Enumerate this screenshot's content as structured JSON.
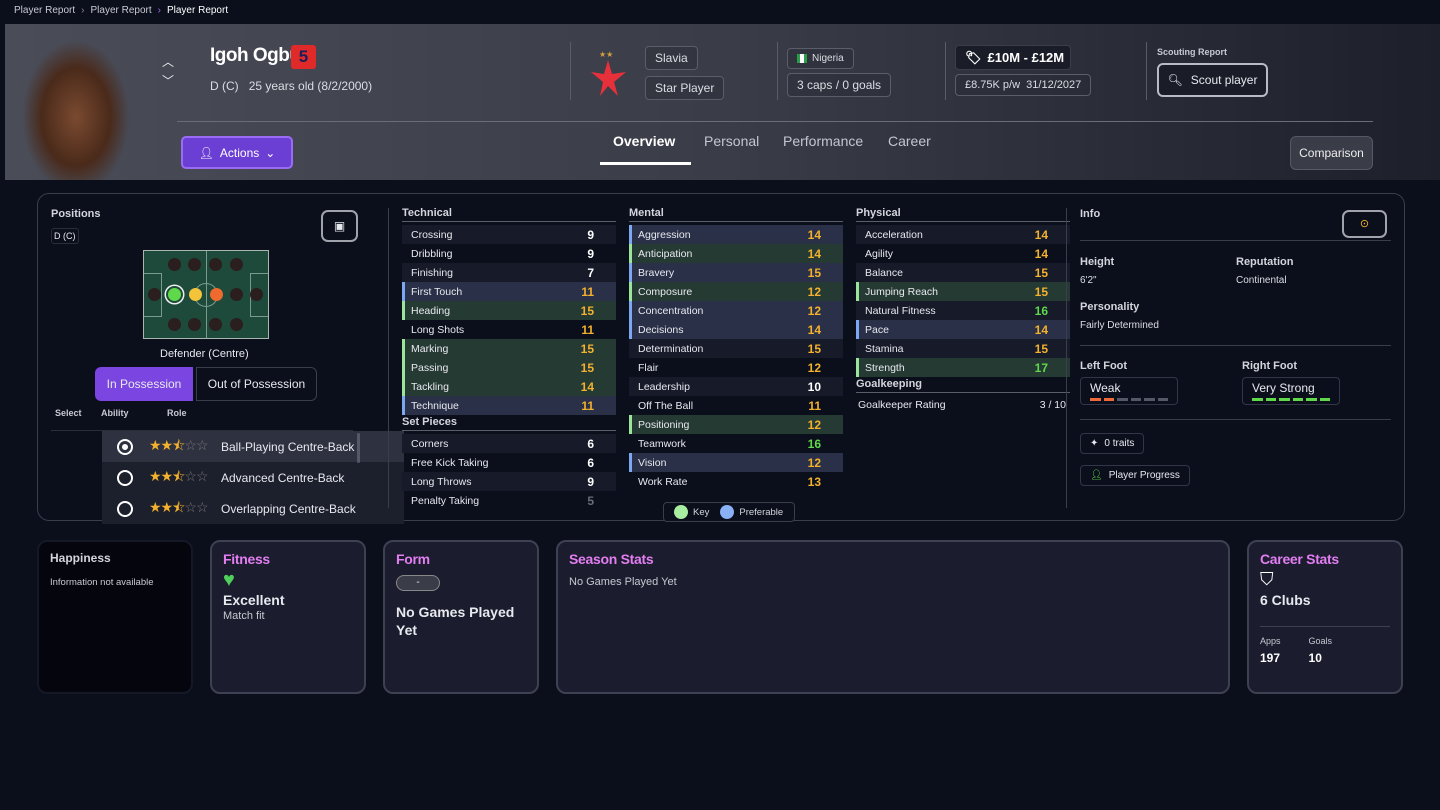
{
  "breadcrumb": [
    "Player Report",
    "Player Report",
    "Player Report"
  ],
  "player": {
    "name": "Igoh Ogbu",
    "number": "5",
    "position": "D (C)",
    "age": "25 years old (8/2/2000)"
  },
  "club": {
    "name": "Slavia",
    "status": "Star Player"
  },
  "nation": {
    "name": "Nigeria",
    "caps": "3 caps / 0 goals"
  },
  "value": {
    "range": "£10M - £12M",
    "wage": "£8.75K p/w",
    "contract": "31/12/2027"
  },
  "scouting": {
    "label": "Scouting Report",
    "button": "Scout player"
  },
  "actions_label": "Actions",
  "tabs": [
    "Overview",
    "Personal",
    "Performance",
    "Career"
  ],
  "comparison_label": "Comparison",
  "positions": {
    "title": "Positions",
    "badge": "D (C)",
    "role_name": "Defender (Centre)",
    "in_possession": "In Possession",
    "out_possession": "Out of Possession",
    "headers": [
      "Select",
      "Ability",
      "Role"
    ],
    "roles": [
      {
        "name": "Ball-Playing Centre-Back",
        "stars": 2.5,
        "selected": true
      },
      {
        "name": "Advanced Centre-Back",
        "stars": 2.5,
        "selected": false
      },
      {
        "name": "Overlapping Centre-Back",
        "stars": 2.5,
        "selected": false
      }
    ]
  },
  "attributes": {
    "technical": {
      "title": "Technical",
      "rows": [
        [
          "Crossing",
          9,
          ""
        ],
        [
          "Dribbling",
          9,
          ""
        ],
        [
          "Finishing",
          7,
          ""
        ],
        [
          "First Touch",
          11,
          "pref"
        ],
        [
          "Heading",
          15,
          "key"
        ],
        [
          "Long Shots",
          11,
          ""
        ],
        [
          "Marking",
          15,
          "key"
        ],
        [
          "Passing",
          15,
          "key"
        ],
        [
          "Tackling",
          14,
          "key"
        ],
        [
          "Technique",
          11,
          "pref"
        ]
      ]
    },
    "set_pieces": {
      "title": "Set Pieces",
      "rows": [
        [
          "Corners",
          6,
          ""
        ],
        [
          "Free Kick Taking",
          6,
          ""
        ],
        [
          "Long Throws",
          9,
          ""
        ],
        [
          "Penalty Taking",
          5,
          ""
        ]
      ]
    },
    "mental": {
      "title": "Mental",
      "rows": [
        [
          "Aggression",
          14,
          "pref"
        ],
        [
          "Anticipation",
          14,
          "key"
        ],
        [
          "Bravery",
          15,
          "pref"
        ],
        [
          "Composure",
          12,
          "key"
        ],
        [
          "Concentration",
          12,
          "pref"
        ],
        [
          "Decisions",
          14,
          "pref"
        ],
        [
          "Determination",
          15,
          ""
        ],
        [
          "Flair",
          12,
          ""
        ],
        [
          "Leadership",
          10,
          ""
        ],
        [
          "Off The Ball",
          11,
          ""
        ],
        [
          "Positioning",
          12,
          "key"
        ],
        [
          "Teamwork",
          16,
          ""
        ],
        [
          "Vision",
          12,
          "pref"
        ],
        [
          "Work Rate",
          13,
          ""
        ]
      ]
    },
    "physical": {
      "title": "Physical",
      "rows": [
        [
          "Acceleration",
          14,
          ""
        ],
        [
          "Agility",
          14,
          ""
        ],
        [
          "Balance",
          15,
          ""
        ],
        [
          "Jumping Reach",
          15,
          "key"
        ],
        [
          "Natural Fitness",
          16,
          ""
        ],
        [
          "Pace",
          14,
          "pref"
        ],
        [
          "Stamina",
          15,
          ""
        ],
        [
          "Strength",
          17,
          "key"
        ]
      ]
    },
    "goalkeeping": {
      "title": "Goalkeeping",
      "label": "Goalkeeper Rating",
      "value": "3 / 10"
    },
    "legend": {
      "key": "Key",
      "preferable": "Preferable"
    },
    "colors": {
      "key": "#9be59a",
      "preferable": "#7da7f0",
      "high": "#f3b12e",
      "elite": "#5fd94a"
    }
  },
  "info": {
    "title": "Info",
    "height_label": "Height",
    "height": "6'2\"",
    "reputation_label": "Reputation",
    "reputation": "Continental",
    "personality_label": "Personality",
    "personality": "Fairly Determined",
    "left_foot_label": "Left Foot",
    "left_foot": "Weak",
    "left_foot_level": 2,
    "right_foot_label": "Right Foot",
    "right_foot": "Very Strong",
    "right_foot_level": 6,
    "traits": "0 traits",
    "progress": "Player Progress"
  },
  "cards": {
    "happiness": {
      "title": "Happiness",
      "text": "Information not available"
    },
    "fitness": {
      "title": "Fitness",
      "value": "Excellent",
      "sub": "Match fit"
    },
    "form": {
      "title": "Form",
      "badge": "-",
      "text": "No Games Played Yet"
    },
    "season": {
      "title": "Season Stats",
      "text": "No Games Played Yet"
    },
    "career": {
      "title": "Career Stats",
      "clubs": "6 Clubs",
      "apps_label": "Apps",
      "apps": "197",
      "goals_label": "Goals",
      "goals": "10"
    }
  }
}
